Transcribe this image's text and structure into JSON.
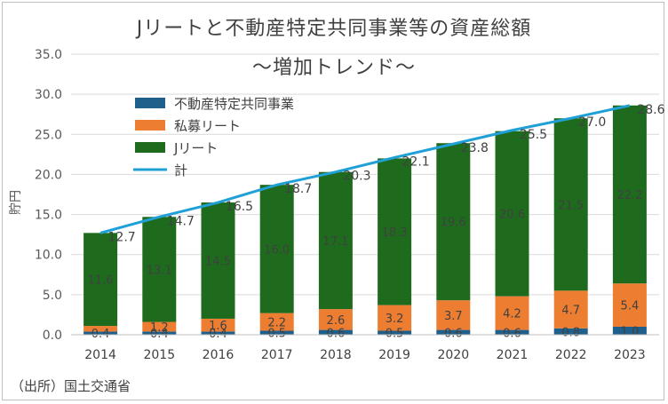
{
  "chart_data": {
    "type": "bar",
    "title": "Jリートと不動産特定共同事業等の資産総額",
    "subtitle": "～増加トレンド～",
    "ylabel": "貯円",
    "xlabel": "",
    "ylim": [
      0,
      35
    ],
    "yticks": [
      "0.0",
      "5.0",
      "10.0",
      "15.0",
      "20.0",
      "25.0",
      "30.0",
      "35.0"
    ],
    "grid": true,
    "legend_position": "top-left",
    "categories": [
      "2014",
      "2015",
      "2016",
      "2017",
      "2018",
      "2019",
      "2020",
      "2021",
      "2022",
      "2023"
    ],
    "series": [
      {
        "name": "不動産特定共同事業",
        "kind": "bar",
        "color": "#1f5f8b",
        "values": [
          0.4,
          0.4,
          0.4,
          0.5,
          0.6,
          0.5,
          0.6,
          0.6,
          0.8,
          1.0
        ]
      },
      {
        "name": "私募リート",
        "kind": "bar",
        "color": "#ed7d31",
        "values": [
          0.7,
          1.2,
          1.6,
          2.2,
          2.6,
          3.2,
          3.7,
          4.2,
          4.7,
          5.4
        ]
      },
      {
        "name": "Jリート",
        "kind": "bar",
        "color": "#1e6b1e",
        "values": [
          11.6,
          13.1,
          14.5,
          16.0,
          17.1,
          18.3,
          19.6,
          20.6,
          21.5,
          22.2
        ]
      },
      {
        "name": "計",
        "kind": "line",
        "color": "#1fa0d6",
        "values": [
          12.7,
          14.7,
          16.5,
          18.7,
          20.3,
          22.1,
          23.8,
          25.5,
          27.0,
          28.6
        ]
      }
    ],
    "data_labels": {
      "不動産特定共同事業": [
        "0.4",
        "0.4",
        "0.4",
        "0.5",
        "0.6",
        "0.5",
        "0.6",
        "0.6",
        "0.8",
        "1.0"
      ],
      "私募リート": [
        "",
        "1.2",
        "1.6",
        "2.2",
        "2.6",
        "3.2",
        "3.7",
        "4.2",
        "4.7",
        "5.4"
      ],
      "Jリート": [
        "11.6",
        "13.1",
        "14.5",
        "16.0",
        "17.1",
        "18.3",
        "19.6",
        "20.6",
        "21.5",
        "22.2"
      ],
      "計": [
        "12.7",
        "14.7",
        "16.5",
        "18.7",
        "20.3",
        "22.1",
        "23.8",
        "25.5",
        "27.0",
        "28.6"
      ]
    }
  },
  "source": "（出所）国土交通省"
}
